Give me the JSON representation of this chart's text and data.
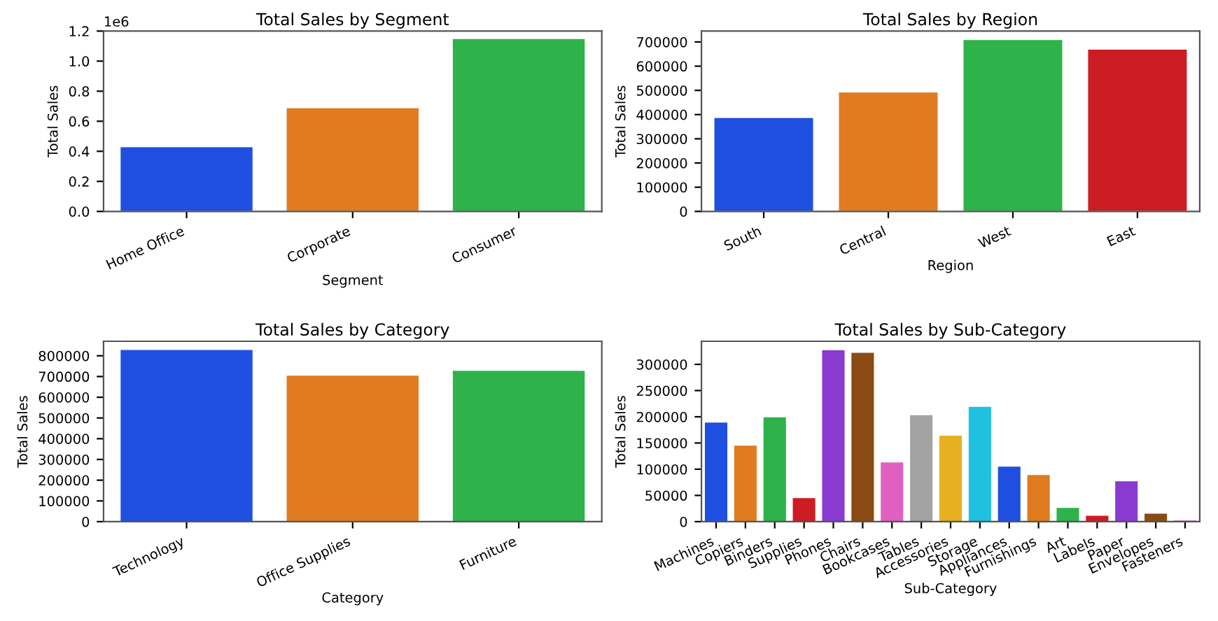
{
  "chart_data": [
    {
      "type": "bar",
      "title": "Total Sales by Segment",
      "xlabel": "Segment",
      "ylabel": "Total Sales",
      "categories": [
        "Home Office",
        "Corporate",
        "Consumer"
      ],
      "values": [
        0.43,
        0.69,
        1.15
      ],
      "colors": [
        "#1f4fe0",
        "#e07b20",
        "#2db34a"
      ],
      "ylim": [
        0.0,
        1.2
      ],
      "yticks": [
        {
          "value": 0,
          "label": "0.0"
        },
        0.2,
        0.4,
        0.6,
        0.8,
        {
          "value": 1,
          "label": "1.0"
        },
        1.2
      ],
      "annotations": [
        "1e6"
      ],
      "grid": false,
      "legend": false
    },
    {
      "type": "bar",
      "title": "Total Sales by Region",
      "xlabel": "Region",
      "ylabel": "Total Sales",
      "categories": [
        "South",
        "Central",
        "West",
        "East"
      ],
      "values": [
        388000,
        493000,
        710000,
        670000
      ],
      "colors": [
        "#1f4fe0",
        "#e07b20",
        "#2db34a",
        "#cc1c24"
      ],
      "ylim": [
        0,
        745000
      ],
      "yticks": [
        0,
        100000,
        200000,
        300000,
        400000,
        500000,
        600000,
        700000
      ],
      "grid": false,
      "legend": false
    },
    {
      "type": "bar",
      "title": "Total Sales by Category",
      "xlabel": "Category",
      "ylabel": "Total Sales",
      "categories": [
        "Technology",
        "Office Supplies",
        "Furniture"
      ],
      "values": [
        830000,
        706000,
        730000
      ],
      "colors": [
        "#1f4fe0",
        "#e07b20",
        "#2db34a"
      ],
      "ylim": [
        0,
        870000
      ],
      "yticks": [
        0,
        100000,
        200000,
        300000,
        400000,
        500000,
        600000,
        700000,
        800000
      ],
      "grid": false,
      "legend": false
    },
    {
      "type": "bar",
      "title": "Total Sales by Sub-Category",
      "xlabel": "Sub-Category",
      "ylabel": "Total Sales",
      "categories": [
        "Machines",
        "Copiers",
        "Binders",
        "Supplies",
        "Phones",
        "Chairs",
        "Bookcases",
        "Tables",
        "Accessories",
        "Storage",
        "Appliances",
        "Furnishings",
        "Art",
        "Labels",
        "Paper",
        "Envelopes",
        "Fasteners"
      ],
      "values": [
        190000,
        146000,
        200000,
        46000,
        328000,
        323000,
        114000,
        204000,
        165000,
        220000,
        106000,
        90000,
        27000,
        12000,
        78000,
        16000,
        3000
      ],
      "colors": [
        "#1f4fe0",
        "#e07b20",
        "#2db34a",
        "#cc1c24",
        "#8a3ad0",
        "#8a4a14",
        "#e060c0",
        "#a3a3a3",
        "#e6b020",
        "#20c0e0",
        "#1f4fe0",
        "#e07b20",
        "#2db34a",
        "#cc1c24",
        "#8a3ad0",
        "#8a4a14",
        "#e060c0"
      ],
      "ylim": [
        0,
        344000
      ],
      "yticks": [
        0,
        50000,
        100000,
        150000,
        200000,
        250000,
        300000
      ],
      "grid": false,
      "legend": false
    }
  ]
}
